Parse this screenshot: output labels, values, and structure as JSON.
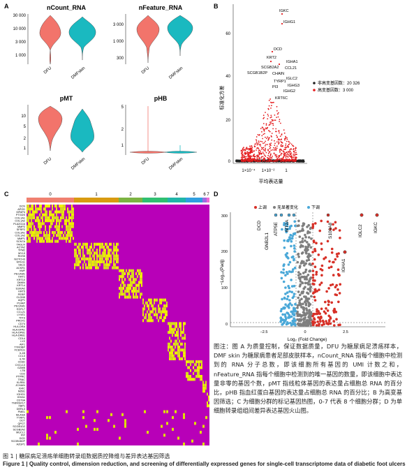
{
  "panels": {
    "A": {
      "letter": "A",
      "violins": [
        {
          "title": "nCount_RNA",
          "y_ticks": [
            "30 000",
            "10 000",
            "3 000",
            "1 000"
          ],
          "groups": [
            "DFU",
            "DMFskin"
          ]
        },
        {
          "title": "nFeature_RNA",
          "y_ticks": [
            "3 000",
            "1 000",
            "300"
          ],
          "groups": [
            "DFU",
            "DMFskin"
          ]
        },
        {
          "title": "pMT",
          "y_ticks": [
            "10",
            "5",
            "2",
            "1"
          ],
          "groups": [
            "DFU",
            "DMFskin"
          ]
        },
        {
          "title": "pHB",
          "y_ticks": [
            "5",
            "2",
            "1"
          ],
          "groups": [
            "DFU",
            "DMFskin"
          ]
        }
      ],
      "colors": {
        "DFU": "#f2746b",
        "DMFskin": "#1ab9c0"
      }
    },
    "B": {
      "letter": "B",
      "ylabel": "标准化方差",
      "xlabel": "平均表达量",
      "y_ticks": [
        "0",
        "20",
        "40",
        "60"
      ],
      "x_ticks": [
        "1×10⁻⁴",
        "1×10⁻²",
        "1"
      ],
      "legend": [
        {
          "label": "非高变基因数：20 326",
          "color": "#222222"
        },
        {
          "label": "高变基因数：3 000",
          "color": "#e41a1c"
        }
      ],
      "gene_labels": [
        "IGKC",
        "IGHG1",
        "DCD",
        "KRT2",
        "IGHA1",
        "SCGB2A2",
        "CCL21",
        "SCGB1B2P",
        "CHAIN",
        "IGLC2",
        "TYRP1",
        "IGHG3",
        "PI3",
        "IGHG2",
        "KRT6C"
      ]
    },
    "C": {
      "letter": "C",
      "clusters": [
        "0",
        "1",
        "2",
        "3",
        "4",
        "5",
        "6",
        "7"
      ],
      "genes": [
        "DCN",
        "APOD",
        "MFAP4",
        "PTGDS",
        "COL1A1",
        "COL1A2",
        "PLA2G2A",
        "MMP2",
        "SFRP2",
        "COL3A1",
        "COL1A2",
        "MMP1",
        "SCN7A",
        "TAGLN",
        "ACTA2",
        "TPM2",
        "MYL9",
        "RGS5",
        "NOTCH3",
        "MYH11",
        "SELE",
        "ACKR1",
        "VWF",
        "PECAM1",
        "KRT1",
        "KRT10",
        "DMKN",
        "KRT14",
        "S100A2",
        "KRT5",
        "PERP",
        "CLDN5",
        "AQP1",
        "PLVAP",
        "PECAM1",
        "EGFL7",
        "CCL21",
        "LYVE1",
        "TFF3",
        "PROX1",
        "CD74",
        "HLA-DRA",
        "HLA-DPA1",
        "HLA-DPB1",
        "HLA-DRB1",
        "CD14",
        "LYZ",
        "AIF1",
        "TYROBP",
        "FCER1G",
        "IL1B",
        "CCL3",
        "IL7R",
        "CD3D",
        "CXCL13",
        "GZMB",
        "LTB",
        "CD2",
        "PTPRC",
        "TRAC",
        "KLRB1",
        "JCHAIN",
        "IGKC",
        "MZB1",
        "IGHG1",
        "IGHA1",
        "CD79A",
        "TNFRSF17",
        "XBP1",
        "DERL3",
        "PMEL",
        "MLANA",
        "TYRP1",
        "DCT",
        "QPCT",
        "SCGB1D2",
        "SCGB2A2",
        "MUCL1",
        "PIP",
        "DCD",
        "SCGB1B2P",
        "AZGP1"
      ]
    },
    "D": {
      "letter": "D",
      "legend": [
        {
          "label": "上调",
          "color": "#d73027"
        },
        {
          "label": "无显著变化",
          "color": "#7f7f7f"
        },
        {
          "label": "下调",
          "color": "#4aa8d8"
        }
      ],
      "ylabel": "−Log₁₀(Padj)",
      "xlabel": "Log₂ (Fold Change)",
      "x_ticks": [
        "−2.5",
        "0",
        "2.5"
      ],
      "y_ticks": [
        "0",
        "100",
        "200",
        "300"
      ],
      "gene_labels": [
        "DCD",
        "ATP5E",
        "MT2A",
        "GNB2L1",
        "S100A8",
        "IGHA1",
        "IGLC2",
        "IGKC"
      ]
    }
  },
  "caption": "图注：图 A 为质量控制，保证数据质量，DFU 为糖尿病足溃疡样本，DMF skin 为糖尿病患者足部皮肤样本，nCount_RNA 指每个细胞中检测到的 RNA 分子总数，即该细胞所有基因的 UMI 计数之和，nFeature_RNA 指每个细胞中检测到的唯一基因的数量，即该细胞中表达量非零的基因个数，pMT 指线粒体基因的表达量占细胞总 RNA 的百分比，pHB 指血红蛋白基因的表达量占细胞总 RNA 的百分比；B 为高变基因筛选；C 为细胞分群的标记基因热图，0-7 代表 8 个细胞分群；D 为单细胞转录组组间差异表达基因火山图。",
  "figure_title_cn": "图 1  |  糖尿病足溃疡单细胞转录组数据质控降维与差异表达基因筛选",
  "figure_title_en_label": "Figure 1  |",
  "figure_title_en": "Quality control, dimension reduction, and screening of differentially expressed genes for single-cell transcriptome data of diabetic foot ulcers"
}
